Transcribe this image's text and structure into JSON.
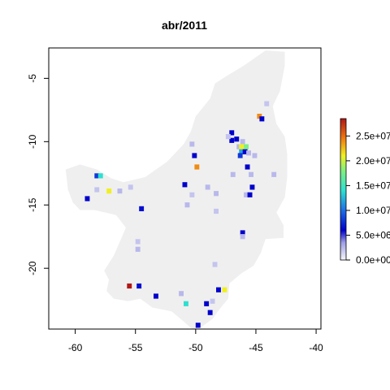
{
  "chart_data": {
    "type": "heatmap",
    "title": "abr/2011",
    "xlabel": "",
    "ylabel": "",
    "xlim": [
      -62.2,
      -39.6
    ],
    "ylim": [
      -24.8,
      -2.6
    ],
    "x_ticks": [
      -60,
      -55,
      -50,
      -45,
      -40
    ],
    "x_tick_labels": [
      "-60",
      "-55",
      "-50",
      "-45",
      "-40"
    ],
    "y_ticks": [
      -5,
      -10,
      -15,
      -20
    ],
    "y_tick_labels": [
      "-5",
      "-10",
      "-15",
      "-20"
    ],
    "colorbar": {
      "range": [
        0,
        28500000
      ],
      "tick_values": [
        0,
        5000000,
        10000000,
        15000000,
        20000000,
        25000000
      ],
      "tick_labels": [
        "0.0e+00",
        "5.0e+06",
        "1.0e+07",
        "1.5e+07",
        "2.0e+07",
        "2.5e+07"
      ],
      "stops": [
        {
          "v": 0,
          "color": "#f5f5fb"
        },
        {
          "v": 3500000,
          "color": "#9f9fe6"
        },
        {
          "v": 6000000,
          "color": "#0000cc"
        },
        {
          "v": 10000000,
          "color": "#1e6fe6"
        },
        {
          "v": 14000000,
          "color": "#2de0d0"
        },
        {
          "v": 18000000,
          "color": "#7ff080"
        },
        {
          "v": 21000000,
          "color": "#f0f020"
        },
        {
          "v": 24500000,
          "color": "#f07a10"
        },
        {
          "v": 28500000,
          "color": "#b01818"
        }
      ]
    },
    "background_color": "#efefef",
    "cell_size": 0.4,
    "cells": [
      [
        -58.2,
        -12.7,
        8000000
      ],
      [
        -57.9,
        -12.7,
        14000000
      ],
      [
        -58.2,
        -13.8,
        2000000
      ],
      [
        -59.0,
        -14.5,
        6000000
      ],
      [
        -57.2,
        -13.9,
        21000000
      ],
      [
        -56.3,
        -13.9,
        2500000
      ],
      [
        -55.4,
        -13.6,
        2000000
      ],
      [
        -54.5,
        -15.3,
        6500000
      ],
      [
        -54.8,
        -18.5,
        2500000
      ],
      [
        -54.8,
        -17.9,
        2000000
      ],
      [
        -55.5,
        -21.4,
        28500000
      ],
      [
        -54.7,
        -21.4,
        6500000
      ],
      [
        -53.3,
        -22.2,
        6000000
      ],
      [
        -51.2,
        -22.0,
        2500000
      ],
      [
        -50.8,
        -22.8,
        14000000
      ],
      [
        -49.8,
        -24.5,
        6000000
      ],
      [
        -49.1,
        -22.8,
        6000000
      ],
      [
        -48.8,
        -23.5,
        6000000
      ],
      [
        -48.6,
        -22.6,
        2000000
      ],
      [
        -48.1,
        -21.7,
        6000000
      ],
      [
        -47.6,
        -21.7,
        21000000
      ],
      [
        -50.1,
        -11.1,
        6000000
      ],
      [
        -50.3,
        -10.2,
        2500000
      ],
      [
        -49.9,
        -12.0,
        24000000
      ],
      [
        -50.9,
        -13.4,
        6000000
      ],
      [
        -50.7,
        -15.0,
        2500000
      ],
      [
        -50.3,
        -14.2,
        2000000
      ],
      [
        -49.0,
        -13.6,
        2500000
      ],
      [
        -48.3,
        -15.5,
        2000000
      ],
      [
        -48.3,
        -14.1,
        2500000
      ],
      [
        -47.0,
        -9.3,
        6000000
      ],
      [
        -47.0,
        -9.9,
        6000000
      ],
      [
        -46.6,
        -9.8,
        6000000
      ],
      [
        -46.1,
        -10.0,
        2500000
      ],
      [
        -47.3,
        -9.6,
        2000000
      ],
      [
        -46.4,
        -10.4,
        2500000
      ],
      [
        -46.2,
        -10.4,
        21000000
      ],
      [
        -45.8,
        -10.4,
        18000000
      ],
      [
        -46.2,
        -10.8,
        12000000
      ],
      [
        -45.9,
        -10.8,
        6000000
      ],
      [
        -45.6,
        -10.9,
        2500000
      ],
      [
        -45.1,
        -11.1,
        2500000
      ],
      [
        -46.3,
        -11.1,
        8000000
      ],
      [
        -45.7,
        -12.0,
        6000000
      ],
      [
        -45.4,
        -12.6,
        2500000
      ],
      [
        -45.3,
        -13.6,
        6000000
      ],
      [
        -45.8,
        -14.2,
        2500000
      ],
      [
        -45.5,
        -14.2,
        6000000
      ],
      [
        -46.9,
        -12.6,
        2500000
      ],
      [
        -44.7,
        -8.0,
        24000000
      ],
      [
        -44.5,
        -8.2,
        6000000
      ],
      [
        -44.1,
        -7.0,
        2000000
      ],
      [
        -43.5,
        -12.6,
        2500000
      ],
      [
        -46.1,
        -17.2,
        6000000
      ],
      [
        -46.1,
        -17.5,
        2500000
      ],
      [
        -48.4,
        -19.7,
        2000000
      ]
    ]
  }
}
